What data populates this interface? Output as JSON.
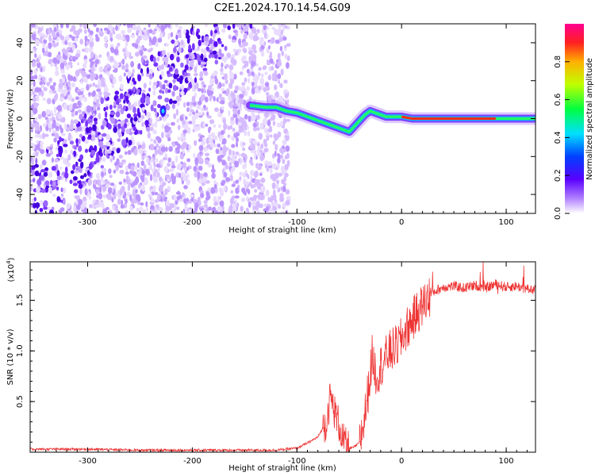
{
  "title": "C2E1.2024.170.14.54.G09",
  "chart_data": [
    {
      "type": "heatmap",
      "xlabel": "Height of straight line (km)",
      "ylabel": "Frequency (Hz)",
      "xlim": [
        -355,
        128
      ],
      "ylim": [
        -50,
        50
      ],
      "x_ticks": [
        -300,
        -200,
        -100,
        0,
        100
      ],
      "y_ticks": [
        -40,
        -20,
        0,
        20,
        40
      ],
      "colorbar": {
        "label": "Normalized spectral amplitude",
        "range": [
          0,
          1
        ],
        "ticks": [
          "0.0",
          "0.2",
          "0.4",
          "0.6",
          "0.8"
        ],
        "tick_values": [
          0.0,
          0.2,
          0.4,
          0.6,
          0.8
        ]
      },
      "signal_track": {
        "x": [
          -145,
          -130,
          -120,
          -110,
          -100,
          -90,
          -80,
          -70,
          -60,
          -50,
          -45,
          -40,
          -35,
          -30,
          -25,
          -20,
          -15,
          -10,
          -5,
          0,
          10,
          30,
          50,
          70,
          90,
          110,
          128
        ],
        "y": [
          7,
          6,
          6,
          4,
          3,
          1,
          -1,
          -3,
          -5,
          -7,
          -4,
          -1,
          2,
          4,
          3,
          2,
          1,
          1,
          1,
          1,
          0,
          0,
          0,
          0,
          0,
          0,
          0
        ]
      }
    },
    {
      "type": "line",
      "xlabel": "Height of straight line (km)",
      "ylabel": "SNR (10 * v/v)",
      "y_multiplier": "(x10",
      "y_multiplier_exp": "4",
      "y_multiplier_close": ")",
      "xlim": [
        -355,
        128
      ],
      "ylim": [
        0,
        1.88
      ],
      "x_ticks": [
        -300,
        -200,
        -100,
        0,
        100
      ],
      "y_ticks": [
        0.5,
        1.0,
        1.5
      ],
      "y_tick_labels": [
        "0.5",
        "1.0",
        "1.5"
      ],
      "color": "#ee3333",
      "series": [
        {
          "x": [
            -355,
            -300,
            -250,
            -200,
            -150,
            -120,
            -100,
            -90,
            -80,
            -72,
            -68,
            -64,
            -60,
            -56,
            -52,
            -48,
            -44,
            -40,
            -36,
            -32,
            -28,
            -24,
            -20,
            -16,
            -12,
            -8,
            -4,
            0,
            5,
            10,
            15,
            20,
            25,
            30,
            40,
            50,
            60,
            70,
            80,
            90,
            100,
            110,
            120,
            128
          ],
          "y": [
            0.03,
            0.03,
            0.02,
            0.02,
            0.02,
            0.02,
            0.04,
            0.09,
            0.15,
            0.3,
            0.55,
            0.4,
            0.28,
            0.12,
            0.04,
            0.04,
            0.06,
            0.1,
            0.3,
            0.6,
            0.95,
            0.75,
            0.85,
            0.92,
            0.98,
            1.02,
            1.05,
            1.12,
            1.22,
            1.3,
            1.38,
            1.45,
            1.52,
            1.58,
            1.63,
            1.64,
            1.62,
            1.65,
            1.62,
            1.66,
            1.63,
            1.64,
            1.61,
            1.6
          ]
        }
      ]
    }
  ]
}
